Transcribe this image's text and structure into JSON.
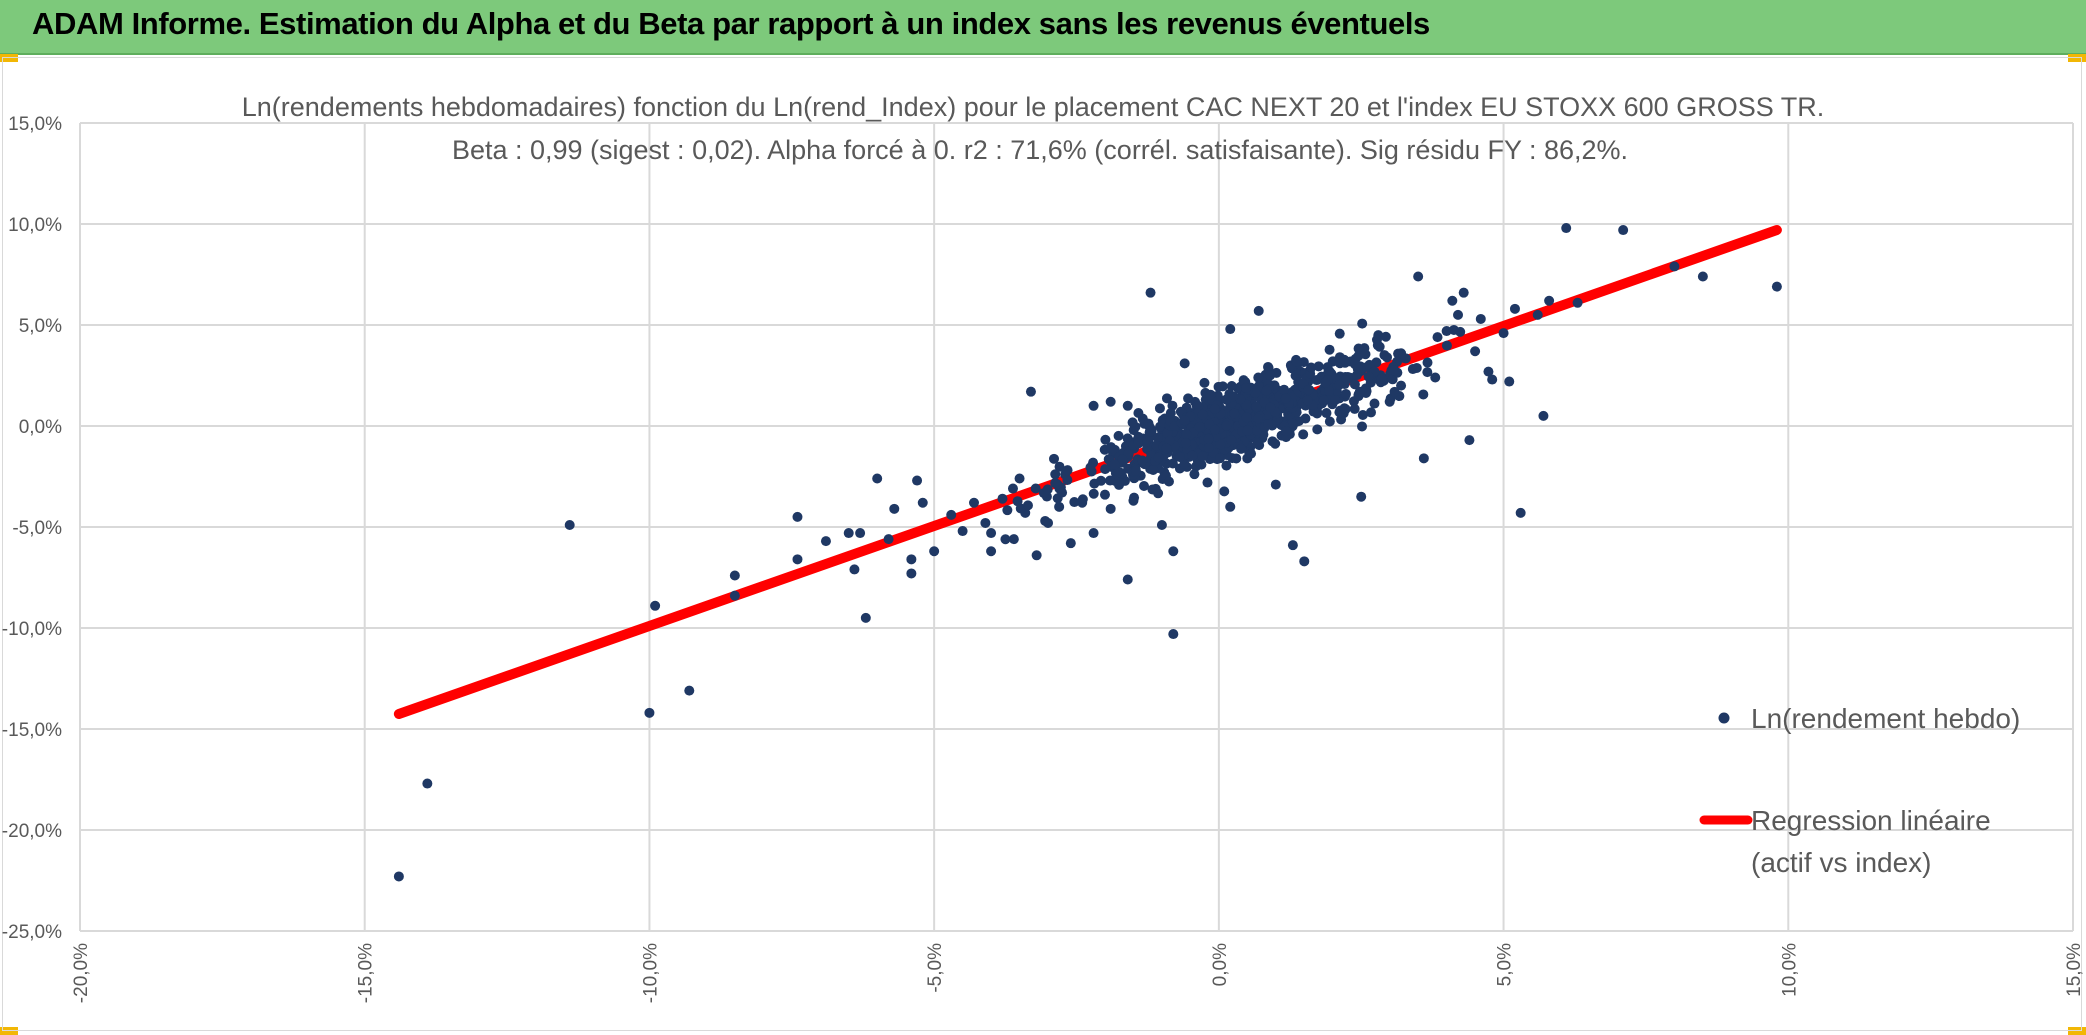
{
  "header": {
    "title": "ADAM Informe. Estimation du Alpha et du Beta par rapport à un index sans les revenus éventuels"
  },
  "colors": {
    "header_bg": "#7dc97b",
    "points": "#1f3864",
    "regression": "#ff0000",
    "grid": "#d9d9d9",
    "text": "#595959"
  },
  "chart_data": {
    "type": "scatter",
    "title": "Ln(rendements hebdomadaires) fonction du Ln(rend_Index) pour le placement CAC NEXT 20 et l'index EU STOXX 600 GROSS TR.",
    "subtitle": "Beta : 0,99 (sigest : 0,02). Alpha forcé à 0. r2 : 71,6% (corrél. satisfaisante). Sig résidu FY : 86,2%.",
    "xlim": [
      -0.2,
      0.15
    ],
    "ylim": [
      -0.25,
      0.15
    ],
    "x_ticks": [
      -0.2,
      -0.15,
      -0.1,
      -0.05,
      0.0,
      0.05,
      0.1,
      0.15
    ],
    "y_ticks": [
      0.15,
      0.1,
      0.05,
      0.0,
      -0.05,
      -0.1,
      -0.15,
      -0.2,
      -0.25
    ],
    "x_tick_labels": [
      "-20,0%",
      "-15,0%",
      "-10,0%",
      "-5,0%",
      "0,0%",
      "5,0%",
      "10,0%",
      "15,0%"
    ],
    "y_tick_labels": [
      "15,0%",
      "10,0%",
      "5,0%",
      "0,0%",
      "-5,0%",
      "-10,0%",
      "-15,0%",
      "-20,0%",
      "-25,0%"
    ],
    "grid": true,
    "legend_position": "right",
    "series": [
      {
        "name": "Ln(rendement hebdo)",
        "kind": "scatter",
        "points": [
          [
            -0.144,
            -0.223
          ],
          [
            -0.139,
            -0.177
          ],
          [
            -0.114,
            -0.049
          ],
          [
            -0.1,
            -0.142
          ],
          [
            -0.099,
            -0.089
          ],
          [
            -0.093,
            -0.131
          ],
          [
            -0.085,
            -0.084
          ],
          [
            -0.085,
            -0.074
          ],
          [
            -0.074,
            -0.066
          ],
          [
            -0.074,
            -0.045
          ],
          [
            -0.069,
            -0.057
          ],
          [
            -0.065,
            -0.053
          ],
          [
            -0.064,
            -0.071
          ],
          [
            -0.063,
            -0.053
          ],
          [
            -0.062,
            -0.095
          ],
          [
            -0.06,
            -0.026
          ],
          [
            -0.058,
            -0.056
          ],
          [
            -0.057,
            -0.041
          ],
          [
            -0.054,
            -0.073
          ],
          [
            -0.054,
            -0.066
          ],
          [
            -0.053,
            -0.027
          ],
          [
            -0.052,
            -0.038
          ],
          [
            -0.05,
            -0.062
          ],
          [
            -0.047,
            -0.044
          ],
          [
            -0.045,
            -0.052
          ],
          [
            -0.043,
            -0.038
          ],
          [
            -0.041,
            -0.048
          ],
          [
            -0.04,
            -0.053
          ],
          [
            -0.04,
            -0.062
          ],
          [
            -0.038,
            -0.036
          ],
          [
            -0.036,
            -0.056
          ],
          [
            -0.035,
            -0.026
          ],
          [
            -0.034,
            -0.043
          ],
          [
            -0.033,
            0.017
          ],
          [
            -0.032,
            -0.064
          ],
          [
            -0.03,
            -0.048
          ],
          [
            -0.028,
            -0.031
          ],
          [
            -0.027,
            -0.024
          ],
          [
            -0.026,
            -0.058
          ],
          [
            -0.024,
            -0.038
          ],
          [
            -0.022,
            -0.053
          ],
          [
            -0.022,
            0.01
          ],
          [
            -0.02,
            -0.034
          ],
          [
            -0.019,
            -0.041
          ],
          [
            -0.019,
            0.012
          ],
          [
            -0.017,
            -0.027
          ],
          [
            -0.016,
            -0.076
          ],
          [
            -0.016,
            0.01
          ],
          [
            -0.015,
            -0.037
          ],
          [
            -0.012,
            -0.018
          ],
          [
            -0.012,
            0.066
          ],
          [
            -0.01,
            -0.049
          ],
          [
            -0.009,
            -0.011
          ],
          [
            -0.008,
            -0.062
          ],
          [
            -0.008,
            -0.103
          ],
          [
            -0.006,
            0.031
          ],
          [
            -0.004,
            -0.02
          ],
          [
            -0.002,
            -0.028
          ],
          [
            0.002,
            0.048
          ],
          [
            0.002,
            -0.04
          ],
          [
            0.005,
            -0.016
          ],
          [
            0.007,
            0.057
          ],
          [
            0.01,
            -0.029
          ],
          [
            0.013,
            -0.059
          ],
          [
            0.014,
            0.018
          ],
          [
            0.015,
            -0.067
          ],
          [
            0.02,
            0.032
          ],
          [
            0.022,
            0.024
          ],
          [
            0.025,
            -0.035
          ],
          [
            0.028,
            0.045
          ],
          [
            0.03,
            0.012
          ],
          [
            0.032,
            0.036
          ],
          [
            0.032,
            0.02
          ],
          [
            0.035,
            0.074
          ],
          [
            0.036,
            -0.016
          ],
          [
            0.038,
            0.024
          ],
          [
            0.04,
            0.047
          ],
          [
            0.041,
            0.062
          ],
          [
            0.042,
            0.055
          ],
          [
            0.043,
            0.066
          ],
          [
            0.044,
            -0.007
          ],
          [
            0.045,
            0.037
          ],
          [
            0.046,
            0.053
          ],
          [
            0.048,
            0.023
          ],
          [
            0.05,
            0.046
          ],
          [
            0.051,
            0.022
          ],
          [
            0.052,
            0.058
          ],
          [
            0.053,
            -0.043
          ],
          [
            0.056,
            0.055
          ],
          [
            0.057,
            0.005
          ],
          [
            0.058,
            0.062
          ],
          [
            0.061,
            0.098
          ],
          [
            0.063,
            0.061
          ],
          [
            0.071,
            0.097
          ],
          [
            0.08,
            0.079
          ],
          [
            0.085,
            0.074
          ],
          [
            0.098,
            0.069
          ]
        ]
      },
      {
        "name": "Regression linéaire (actif vs index)",
        "kind": "line",
        "beta": 0.99,
        "alpha": 0.0,
        "x_range": [
          -0.144,
          0.098
        ]
      }
    ],
    "legend": [
      {
        "label": "Ln(rendement hebdo)"
      },
      {
        "label_line1": "Regression linéaire",
        "label_line2": "(actif vs index)"
      }
    ]
  }
}
